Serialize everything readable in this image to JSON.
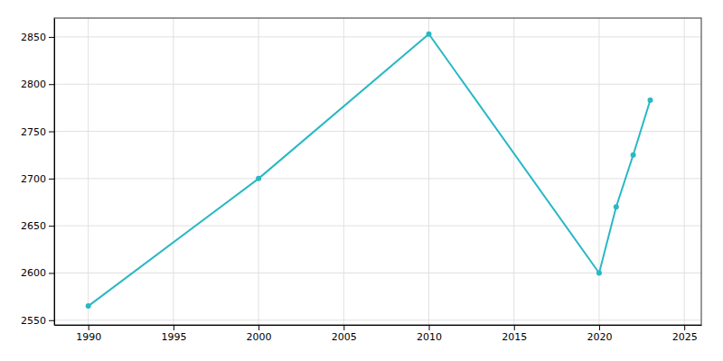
{
  "chart_data": {
    "type": "line",
    "x": [
      1990,
      2000,
      2010,
      2020,
      2021,
      2022,
      2023
    ],
    "values": [
      2565,
      2700,
      2853,
      2600,
      2670,
      2725,
      2783
    ],
    "color": "#29b8c4",
    "marker": "circle",
    "xlim": [
      1988,
      2026
    ],
    "xticks": [
      1990,
      1995,
      2000,
      2005,
      2010,
      2015,
      2020,
      2025
    ],
    "ylim": [
      2545,
      2870
    ],
    "yticks": [
      2550,
      2600,
      2650,
      2700,
      2750,
      2800,
      2850
    ],
    "grid": true
  }
}
